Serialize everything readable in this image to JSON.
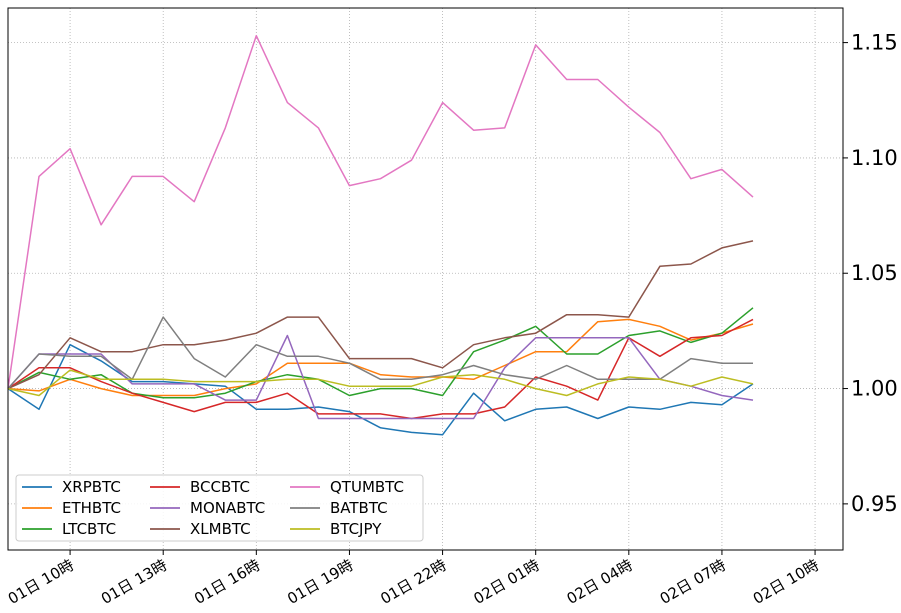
{
  "chart_data": {
    "type": "line",
    "title": "",
    "xlabel": "",
    "ylabel": "",
    "x": [
      "01日 08時",
      "01日 09時",
      "01日 10時",
      "01日 11時",
      "01日 12時",
      "01日 13時",
      "01日 14時",
      "01日 15時",
      "01日 16時",
      "01日 17時",
      "01日 18時",
      "01日 19時",
      "01日 20時",
      "01日 21時",
      "01日 22時",
      "01日 23時",
      "02日 00時",
      "02日 01時",
      "02日 02時",
      "02日 03時",
      "02日 04時",
      "02日 05時",
      "02日 06時",
      "02日 07時",
      "02日 08時"
    ],
    "x_ticks": [
      "01日 10時",
      "01日 13時",
      "01日 16時",
      "01日 19時",
      "01日 22時",
      "02日 01時",
      "02日 04時",
      "02日 07時",
      "02日 10時"
    ],
    "x_range": [
      "01日 08時",
      "02日 10時 +0.9h"
    ],
    "ylim": [
      0.93,
      1.165
    ],
    "y_ticks": [
      "0.95",
      "1.00",
      "1.05",
      "1.10",
      "1.15"
    ],
    "y_axis_side": "right",
    "grid": "dotted",
    "legend": {
      "placement": "lower-left",
      "columns": 3
    },
    "series": [
      {
        "name": "XRPBTC",
        "color": "#1f77b4",
        "values": [
          1.0,
          0.991,
          1.019,
          1.012,
          1.003,
          1.003,
          1.002,
          1.001,
          0.991,
          0.991,
          0.992,
          0.99,
          0.983,
          0.981,
          0.98,
          0.998,
          0.986,
          0.991,
          0.992,
          0.987,
          0.992,
          0.991,
          0.994,
          0.993,
          1.002
        ]
      },
      {
        "name": "ETHBTC",
        "color": "#ff7f0e",
        "values": [
          1.0,
          0.999,
          1.004,
          1.0,
          0.997,
          0.997,
          0.997,
          1.0,
          1.002,
          1.011,
          1.011,
          1.011,
          1.006,
          1.005,
          1.005,
          1.004,
          1.01,
          1.016,
          1.016,
          1.029,
          1.03,
          1.027,
          1.021,
          1.024,
          1.028
        ]
      },
      {
        "name": "LTCBTC",
        "color": "#2ca02c",
        "values": [
          1.0,
          1.007,
          1.004,
          1.006,
          0.998,
          0.996,
          0.996,
          0.998,
          1.003,
          1.006,
          1.004,
          0.997,
          1.0,
          1.0,
          0.997,
          1.016,
          1.021,
          1.027,
          1.015,
          1.015,
          1.023,
          1.025,
          1.02,
          1.024,
          1.035
        ]
      },
      {
        "name": "BCCBTC",
        "color": "#d62728",
        "values": [
          1.0,
          1.009,
          1.009,
          1.003,
          0.998,
          0.994,
          0.99,
          0.994,
          0.994,
          0.998,
          0.989,
          0.989,
          0.989,
          0.987,
          0.989,
          0.989,
          0.992,
          1.005,
          1.001,
          0.995,
          1.022,
          1.014,
          1.022,
          1.023,
          1.03
        ]
      },
      {
        "name": "MONABTC",
        "color": "#9467bd",
        "values": [
          1.0,
          1.015,
          1.015,
          1.015,
          1.002,
          1.002,
          1.002,
          0.995,
          0.995,
          1.023,
          0.987,
          0.987,
          0.987,
          0.987,
          0.987,
          0.987,
          1.009,
          1.022,
          1.022,
          1.022,
          1.022,
          1.004,
          1.001,
          0.997,
          0.995
        ]
      },
      {
        "name": "XLMBTC",
        "color": "#8c564b",
        "values": [
          1.0,
          1.006,
          1.022,
          1.016,
          1.016,
          1.019,
          1.019,
          1.021,
          1.024,
          1.031,
          1.031,
          1.013,
          1.013,
          1.013,
          1.009,
          1.019,
          1.022,
          1.024,
          1.032,
          1.032,
          1.031,
          1.053,
          1.054,
          1.061,
          1.064
        ]
      },
      {
        "name": "QTUMBTC",
        "color": "#e377c2",
        "values": [
          1.0,
          1.092,
          1.104,
          1.071,
          1.092,
          1.092,
          1.081,
          1.113,
          1.153,
          1.124,
          1.113,
          1.088,
          1.091,
          1.099,
          1.124,
          1.112,
          1.113,
          1.149,
          1.134,
          1.134,
          1.122,
          1.111,
          1.091,
          1.095,
          1.083
        ]
      },
      {
        "name": "BATBTC",
        "color": "#7f7f7f",
        "values": [
          1.0,
          1.015,
          1.014,
          1.014,
          1.004,
          1.031,
          1.013,
          1.005,
          1.019,
          1.014,
          1.014,
          1.011,
          1.004,
          1.004,
          1.006,
          1.01,
          1.006,
          1.004,
          1.01,
          1.004,
          1.004,
          1.004,
          1.013,
          1.011,
          1.011
        ]
      },
      {
        "name": "BTCJPY",
        "color": "#bcbd22",
        "values": [
          1.0,
          0.997,
          1.008,
          1.004,
          1.004,
          1.004,
          1.003,
          1.003,
          1.003,
          1.004,
          1.004,
          1.001,
          1.001,
          1.001,
          1.005,
          1.006,
          1.004,
          1.0,
          0.997,
          1.002,
          1.005,
          1.004,
          1.001,
          1.005,
          1.002
        ]
      }
    ]
  }
}
